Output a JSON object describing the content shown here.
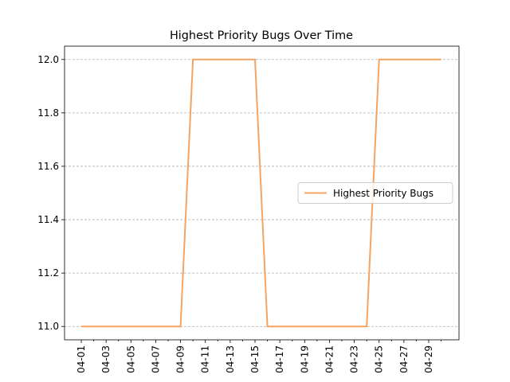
{
  "chart_data": {
    "type": "line",
    "title": "Highest Priority Bugs Over Time",
    "categories": [
      "04-01",
      null,
      "04-03",
      null,
      "04-05",
      null,
      "04-07",
      null,
      "04-09",
      null,
      "04-11",
      null,
      "04-13",
      null,
      "04-15",
      null,
      "04-17",
      null,
      "04-19",
      null,
      "04-21",
      null,
      "04-23",
      null,
      "04-25",
      null,
      "04-27",
      null,
      "04-29",
      null
    ],
    "series": [
      {
        "name": "Highest Priority Bugs",
        "color": "#f4a460",
        "values": [
          11,
          11,
          11,
          11,
          11,
          11,
          11,
          11,
          11,
          12,
          12,
          12,
          12,
          12,
          12,
          11,
          11,
          11,
          11,
          11,
          11,
          11,
          11,
          11,
          12,
          12,
          12,
          12,
          12,
          12
        ]
      }
    ],
    "ylim": [
      10.95,
      12.05
    ],
    "yticks": [
      {
        "value": 11,
        "label": "11.0"
      },
      {
        "value": 11.2,
        "label": "11.2"
      },
      {
        "value": 11.4,
        "label": "11.4"
      },
      {
        "value": 11.6,
        "label": "11.6"
      },
      {
        "value": 11.8,
        "label": "11.8"
      },
      {
        "value": 12,
        "label": "12.0"
      }
    ],
    "grid": true,
    "legend": "center right"
  }
}
